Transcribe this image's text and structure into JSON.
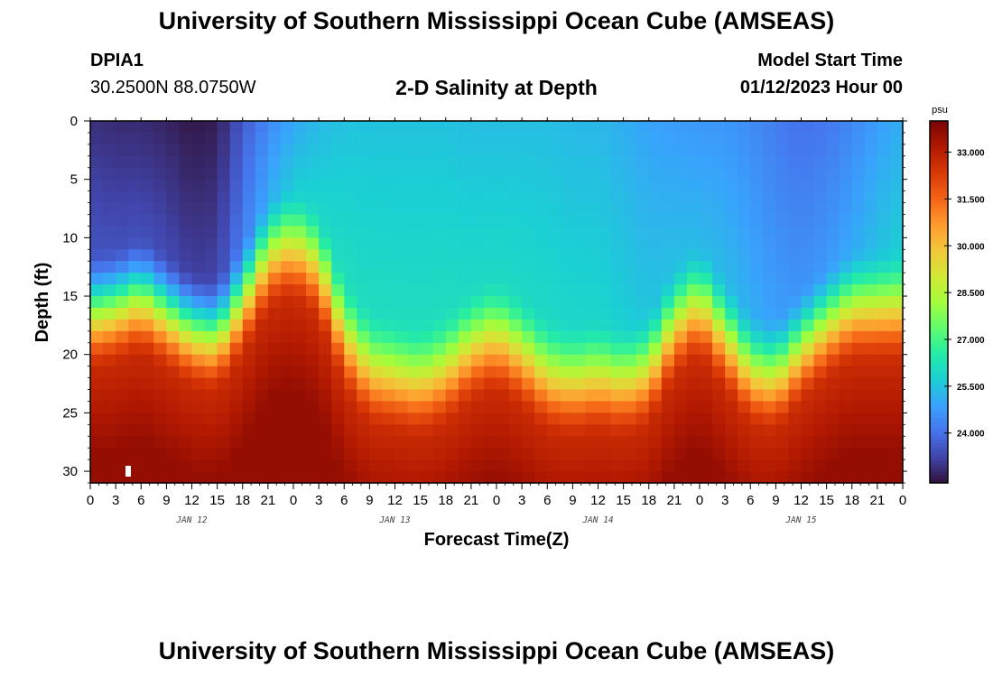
{
  "header": {
    "title": "University of Southern Mississippi Ocean Cube (AMSEAS)",
    "station_id": "DPIA1",
    "coordinates": "30.2500N  88.0750W",
    "chart_title": "2-D Salinity at Depth",
    "model_start_label": "Model Start Time",
    "model_start_value": "01/12/2023 Hour 00"
  },
  "footer": {
    "title": "University of Southern Mississippi Ocean Cube (AMSEAS)"
  },
  "colors": {
    "colormap": [
      "#30123b",
      "#4145ab",
      "#4675ed",
      "#39a2fc",
      "#1bcfd4",
      "#24eca6",
      "#61fc6c",
      "#a4fc3b",
      "#d1e834",
      "#f3c63a",
      "#fe9b2d",
      "#f36315",
      "#d93806",
      "#b11901",
      "#7a0403"
    ]
  },
  "chart_data": {
    "type": "heatmap",
    "title": "2-D Salinity at Depth",
    "xlabel": "Forecast Time(Z)",
    "ylabel": "Depth (ft)",
    "x_tick_labels": [
      "0",
      "3",
      "6",
      "9",
      "12",
      "15",
      "18",
      "21",
      "0",
      "3",
      "6",
      "9",
      "12",
      "15",
      "18",
      "21",
      "0",
      "3",
      "6",
      "9",
      "12",
      "15",
      "18",
      "21",
      "0",
      "3",
      "6",
      "9",
      "12",
      "15",
      "18",
      "21",
      "0"
    ],
    "x_range_hours": [
      0,
      96
    ],
    "date_labels": [
      {
        "label": "JAN 12",
        "hour": 12
      },
      {
        "label": "JAN 13",
        "hour": 36
      },
      {
        "label": "JAN 14",
        "hour": 60
      },
      {
        "label": "JAN 15",
        "hour": 84
      }
    ],
    "y_ticks": [
      0,
      5,
      10,
      15,
      20,
      25,
      30
    ],
    "y_tick_labels": [
      "0",
      "5",
      "10",
      "15",
      "20",
      "25",
      "30"
    ],
    "y_range_ft": [
      0,
      31
    ],
    "colorbar": {
      "unit": "psu",
      "range": [
        22.4,
        34.0
      ],
      "ticks": [
        24.0,
        25.5,
        27.0,
        28.5,
        30.0,
        31.5,
        33.0
      ],
      "tick_labels": [
        "24.000",
        "25.500",
        "27.000",
        "28.500",
        "30.000",
        "31.500",
        "33.000"
      ]
    },
    "halocline_depth_ft": {
      "hours": [
        0,
        3,
        6,
        9,
        12,
        15,
        18,
        21,
        24,
        27,
        30,
        33,
        36,
        39,
        42,
        45,
        48,
        51,
        54,
        57,
        60,
        63,
        66,
        69,
        72,
        75,
        78,
        81,
        84,
        87,
        90,
        93,
        96
      ],
      "depths": [
        17,
        16.5,
        15.5,
        17,
        18.5,
        19,
        16,
        12,
        11,
        13,
        19,
        22,
        22.5,
        23,
        22,
        20,
        19,
        20.5,
        22.5,
        23,
        22.5,
        23,
        22,
        18,
        16,
        19,
        22,
        22.5,
        20,
        18,
        16.5,
        16.5,
        16.5
      ]
    },
    "surface_salinity_psu": {
      "hours": [
        0,
        3,
        6,
        9,
        12,
        15,
        18,
        21,
        24,
        27,
        30,
        33,
        36,
        39,
        42,
        45,
        48,
        51,
        54,
        57,
        60,
        63,
        66,
        69,
        72,
        75,
        78,
        81,
        84,
        87,
        90,
        93,
        96
      ],
      "values": [
        22.9,
        22.8,
        22.8,
        22.7,
        22.5,
        22.6,
        23.6,
        24.4,
        25.0,
        25.3,
        25.5,
        25.5,
        25.5,
        25.5,
        25.5,
        25.4,
        25.4,
        25.4,
        25.4,
        25.3,
        25.3,
        25.1,
        24.9,
        24.8,
        24.7,
        24.7,
        24.5,
        24.2,
        24.0,
        24.1,
        24.4,
        24.8,
        25.1
      ]
    },
    "bottom_salinity_psu": 33.6
  }
}
